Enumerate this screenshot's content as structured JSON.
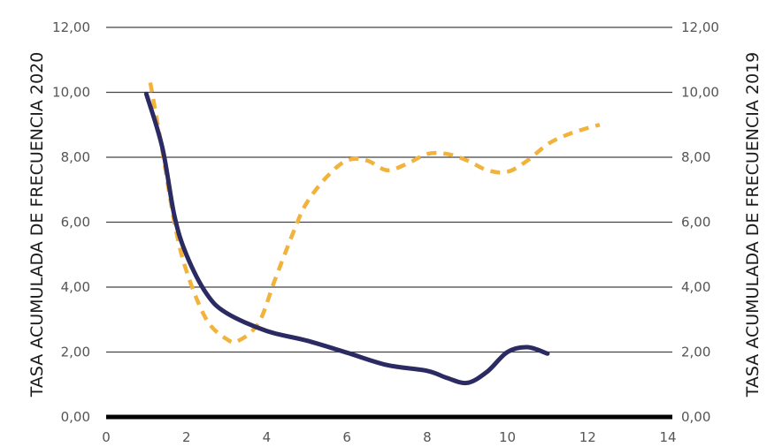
{
  "chart_data": {
    "type": "line",
    "title": "",
    "xlabel": "",
    "ylabel_left": "TASA ACUMULADA DE FRECUENCIA 2020",
    "ylabel_right": "TASA ACUMULADA DE FRECUENCIA 2019",
    "xlim": [
      0,
      14
    ],
    "ylim": [
      0,
      12
    ],
    "x_ticks": [
      "0",
      "2",
      "4",
      "6",
      "8",
      "10",
      "12",
      "14"
    ],
    "y_ticks": [
      "0,00",
      "2,00",
      "4,00",
      "6,00",
      "8,00",
      "10,00",
      "12,00"
    ],
    "grid": "horizontal",
    "legend": "none",
    "series": [
      {
        "style": "solid",
        "color": "#2b2a63",
        "axis": "left",
        "points": [
          [
            1.0,
            9.95
          ],
          [
            1.4,
            8.3
          ],
          [
            1.7,
            6.2
          ],
          [
            2.0,
            5.0
          ],
          [
            2.5,
            3.8
          ],
          [
            3.0,
            3.2
          ],
          [
            4.0,
            2.65
          ],
          [
            5.0,
            2.35
          ],
          [
            6.0,
            1.98
          ],
          [
            7.0,
            1.6
          ],
          [
            8.0,
            1.42
          ],
          [
            8.5,
            1.2
          ],
          [
            9.0,
            1.05
          ],
          [
            9.5,
            1.4
          ],
          [
            10.0,
            2.0
          ],
          [
            10.5,
            2.15
          ],
          [
            11.0,
            1.95
          ]
        ]
      },
      {
        "style": "dashed",
        "color": "#f2b33d",
        "axis": "right",
        "points": [
          [
            1.1,
            10.3
          ],
          [
            1.4,
            8.2
          ],
          [
            1.7,
            6.0
          ],
          [
            2.0,
            4.5
          ],
          [
            2.5,
            3.0
          ],
          [
            3.0,
            2.4
          ],
          [
            3.3,
            2.35
          ],
          [
            3.8,
            2.9
          ],
          [
            4.2,
            4.2
          ],
          [
            4.7,
            5.8
          ],
          [
            5.0,
            6.6
          ],
          [
            5.5,
            7.4
          ],
          [
            6.0,
            7.9
          ],
          [
            6.5,
            7.9
          ],
          [
            7.0,
            7.6
          ],
          [
            7.5,
            7.8
          ],
          [
            8.0,
            8.1
          ],
          [
            8.5,
            8.1
          ],
          [
            9.0,
            7.9
          ],
          [
            9.5,
            7.6
          ],
          [
            10.0,
            7.55
          ],
          [
            10.5,
            7.9
          ],
          [
            11.0,
            8.4
          ],
          [
            11.5,
            8.7
          ],
          [
            12.0,
            8.9
          ],
          [
            12.3,
            9.0
          ]
        ]
      }
    ]
  }
}
